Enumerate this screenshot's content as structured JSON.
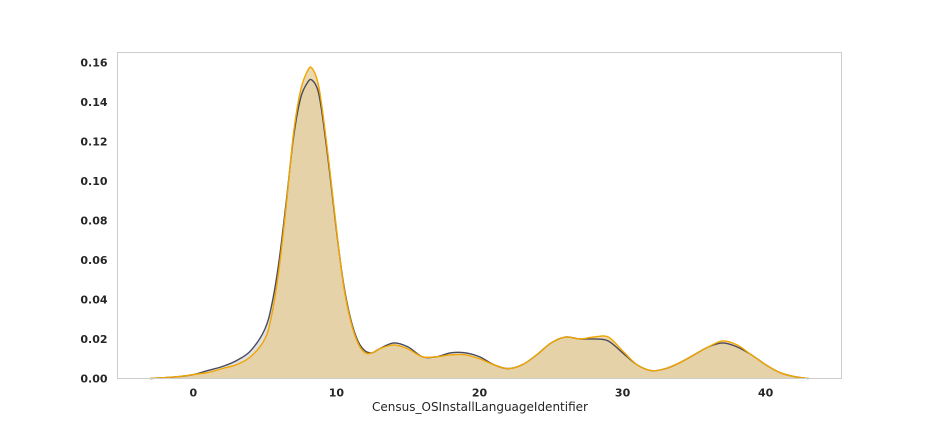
{
  "chart_data": {
    "type": "area",
    "title": "",
    "xlabel": "Census_OSInstallLanguageIdentifier",
    "ylabel": "",
    "xlim": [
      -5.3,
      45.3
    ],
    "ylim": [
      0,
      0.165
    ],
    "grid": false,
    "legend": "none",
    "x_ticks": [
      0,
      10,
      20,
      30,
      40
    ],
    "y_ticks": [
      0.0,
      0.02,
      0.04,
      0.06,
      0.08,
      0.1,
      0.12,
      0.14,
      0.16
    ],
    "x_tick_labels": [
      "0",
      "10",
      "20",
      "30",
      "40"
    ],
    "y_tick_labels": [
      "0.00",
      "0.02",
      "0.04",
      "0.06",
      "0.08",
      "0.10",
      "0.12",
      "0.14",
      "0.16"
    ],
    "series": [
      {
        "color": "#4a4a5a",
        "fill": "#c8c8d0",
        "x": [
          -3,
          -1,
          0,
          1,
          2,
          3,
          4,
          5,
          5.5,
          6,
          6.5,
          7,
          7.5,
          8,
          8.3,
          8.7,
          9,
          9.5,
          10,
          10.5,
          11,
          11.5,
          12,
          12.5,
          13,
          14,
          15,
          16,
          17,
          18,
          19,
          20,
          21,
          22,
          23,
          24,
          25,
          26,
          27,
          28,
          29,
          30,
          31,
          32,
          33,
          34,
          35,
          36,
          37,
          38,
          39,
          40,
          41,
          42,
          43
        ],
        "y": [
          0,
          0.001,
          0.002,
          0.004,
          0.006,
          0.009,
          0.014,
          0.025,
          0.038,
          0.06,
          0.09,
          0.122,
          0.142,
          0.15,
          0.151,
          0.146,
          0.134,
          0.106,
          0.075,
          0.048,
          0.03,
          0.019,
          0.014,
          0.013,
          0.015,
          0.018,
          0.016,
          0.011,
          0.011,
          0.013,
          0.013,
          0.011,
          0.007,
          0.005,
          0.007,
          0.012,
          0.018,
          0.021,
          0.02,
          0.02,
          0.019,
          0.013,
          0.007,
          0.004,
          0.005,
          0.008,
          0.012,
          0.016,
          0.018,
          0.016,
          0.012,
          0.007,
          0.003,
          0.001,
          0
        ]
      },
      {
        "color": "#f0a500",
        "fill": "#e6cc94",
        "x": [
          -3,
          -1,
          0,
          1,
          2,
          3,
          4,
          5,
          5.5,
          6,
          6.5,
          7,
          7.5,
          8,
          8.3,
          8.7,
          9,
          9.5,
          10,
          10.5,
          11,
          11.5,
          12,
          12.5,
          13,
          14,
          15,
          16,
          17,
          18,
          19,
          20,
          21,
          22,
          23,
          24,
          25,
          26,
          27,
          28,
          29,
          30,
          31,
          32,
          33,
          34,
          35,
          36,
          37,
          38,
          39,
          40,
          41,
          42,
          43
        ],
        "y": [
          0,
          0.001,
          0.002,
          0.003,
          0.005,
          0.007,
          0.011,
          0.02,
          0.033,
          0.056,
          0.088,
          0.124,
          0.146,
          0.156,
          0.157,
          0.15,
          0.137,
          0.108,
          0.076,
          0.047,
          0.029,
          0.018,
          0.013,
          0.013,
          0.015,
          0.017,
          0.015,
          0.011,
          0.011,
          0.012,
          0.012,
          0.01,
          0.007,
          0.005,
          0.007,
          0.012,
          0.018,
          0.021,
          0.02,
          0.021,
          0.021,
          0.014,
          0.007,
          0.004,
          0.005,
          0.008,
          0.012,
          0.016,
          0.019,
          0.017,
          0.012,
          0.007,
          0.003,
          0.001,
          0
        ]
      }
    ]
  }
}
